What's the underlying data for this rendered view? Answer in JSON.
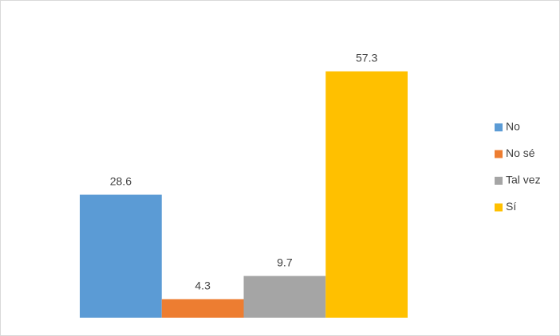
{
  "chart_data": {
    "type": "bar",
    "categories": [
      null
    ],
    "series": [
      {
        "name": "No",
        "color": "#5b9bd5",
        "values": [
          28.6
        ]
      },
      {
        "name": "No sé",
        "color": "#ed7d31",
        "values": [
          4.3
        ]
      },
      {
        "name": "Tal vez",
        "color": "#a5a5a5",
        "values": [
          9.7
        ]
      },
      {
        "name": "Sí",
        "color": "#ffc000",
        "values": [
          57.3
        ]
      }
    ],
    "ylim": [
      0,
      60
    ],
    "legend": "right"
  }
}
